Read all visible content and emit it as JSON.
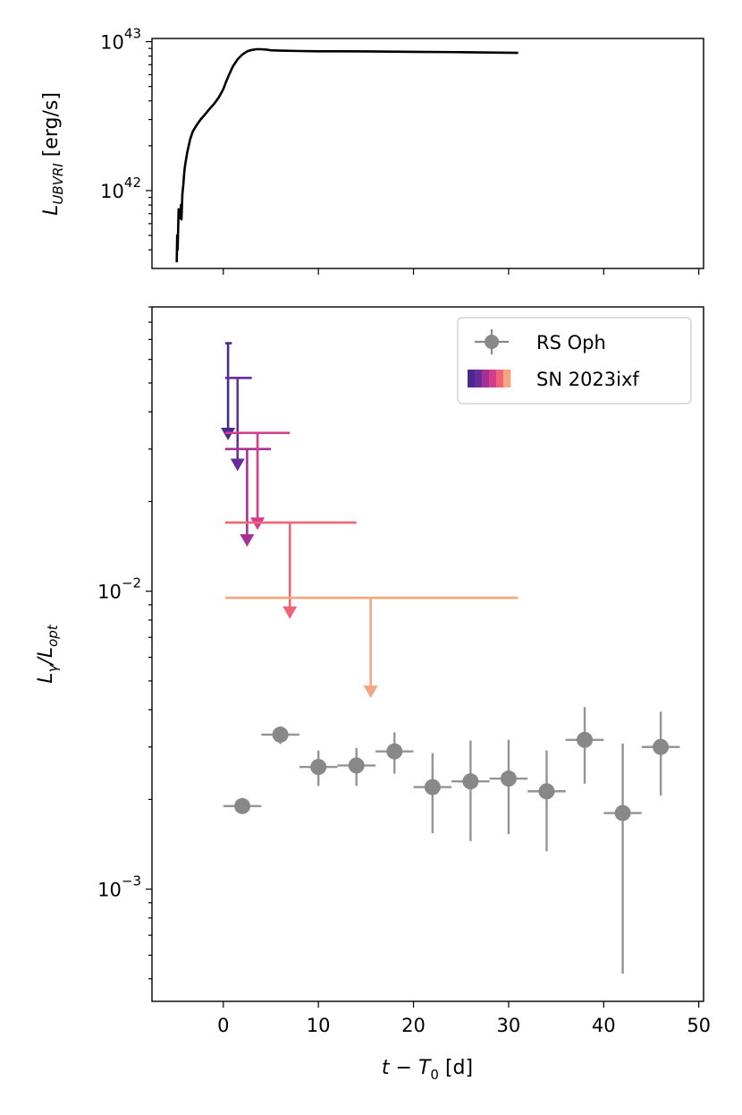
{
  "chart_data": [
    {
      "type": "line",
      "panel": "top",
      "ylabel": "L_UBVRI [erg/s]",
      "ylabel_main": "L",
      "ylabel_sub": "UBVRI",
      "ylabel_unit": " [erg/s]",
      "yscale": "log",
      "ylim": [
        3e+41,
        1.05e+43
      ],
      "xlim": [
        -7.5,
        50.5
      ],
      "yticks": [
        {
          "value": 1e+42,
          "base": "10",
          "exp": "42"
        },
        {
          "value": 1e+43,
          "base": "10",
          "exp": "43"
        }
      ],
      "series": [
        {
          "name": "SN 2023ixf optical light curve",
          "color": "#000000",
          "x": [
            -4.9,
            -4.85,
            -4.8,
            -4.7,
            -4.6,
            -4.5,
            -4.45,
            -4.4,
            -4.3,
            -4.2,
            -4.1,
            -4.0,
            -3.8,
            -3.5,
            -3.2,
            -2.8,
            -2.4,
            -2.0,
            -1.5,
            -1.0,
            -0.5,
            0.0,
            0.3,
            0.6,
            1.0,
            1.5,
            2.0,
            2.5,
            3.0,
            3.5,
            4.0,
            4.5,
            5.0,
            6.0,
            8.0,
            10.0,
            15.0,
            20.0,
            25.0,
            28.0,
            31.0
          ],
          "y": [
            3.3e+41,
            5e+41,
            4e+41,
            7.5e+41,
            7e+41,
            6.5e+41,
            8e+41,
            6.4e+41,
            9.5e+41,
            1.1e+42,
            1.35e+42,
            1.5e+42,
            1.8e+42,
            2.2e+42,
            2.5e+42,
            2.75e+42,
            3e+42,
            3.2e+42,
            3.5e+42,
            3.8e+42,
            4.2e+42,
            4.8e+42,
            5.4e+42,
            6e+42,
            6.8e+42,
            7.6e+42,
            8.2e+42,
            8.6e+42,
            8.8e+42,
            8.9e+42,
            8.9e+42,
            8.85e+42,
            8.75e+42,
            8.7e+42,
            8.65e+42,
            8.62e+42,
            8.6e+42,
            8.55e+42,
            8.5e+42,
            8.45e+42,
            8.4e+42
          ]
        }
      ]
    },
    {
      "type": "scatter",
      "panel": "bottom",
      "xlabel": "t − T0 [d]",
      "xlabel_main": "t − T",
      "xlabel_sub": "0",
      "xlabel_unit": " [d]",
      "ylabel": "Lγ/Lopt",
      "yscale": "log",
      "xlim": [
        -7.5,
        50.5
      ],
      "ylim": [
        0.00042,
        0.09
      ],
      "xticks": [
        0,
        10,
        20,
        30,
        40,
        50
      ],
      "yticks": [
        {
          "value": 0.001,
          "base": "10",
          "exp": "−3"
        },
        {
          "value": 0.01,
          "base": "10",
          "exp": "−2"
        }
      ],
      "legend": {
        "position": "top-right",
        "entries": [
          {
            "label": "RS Oph",
            "color": "#888888",
            "marker": "errorbar-circle"
          },
          {
            "label": "SN 2023ixf",
            "colors": [
              "#4b2991",
              "#6a2c9b",
              "#a63195",
              "#d33d8c",
              "#ef6577",
              "#f7a580"
            ],
            "marker": "color-swatches"
          }
        ]
      },
      "series": [
        {
          "name": "RS Oph",
          "color": "#888888",
          "points": [
            {
              "x": 2,
              "xerr": 2,
              "y": 0.0019,
              "ylo": 0.00184,
              "yhi": 0.00196
            },
            {
              "x": 6,
              "xerr": 2,
              "y": 0.0033,
              "ylo": 0.00307,
              "yhi": 0.00352
            },
            {
              "x": 10,
              "xerr": 2,
              "y": 0.00257,
              "ylo": 0.00222,
              "yhi": 0.00292
            },
            {
              "x": 14,
              "xerr": 2,
              "y": 0.0026,
              "ylo": 0.00222,
              "yhi": 0.00298
            },
            {
              "x": 18,
              "xerr": 2,
              "y": 0.0029,
              "ylo": 0.00244,
              "yhi": 0.00336
            },
            {
              "x": 22,
              "xerr": 2,
              "y": 0.0022,
              "ylo": 0.00154,
              "yhi": 0.00286
            },
            {
              "x": 26,
              "xerr": 2,
              "y": 0.0023,
              "ylo": 0.00145,
              "yhi": 0.00315
            },
            {
              "x": 30,
              "xerr": 2,
              "y": 0.00235,
              "ylo": 0.00153,
              "yhi": 0.00317
            },
            {
              "x": 34,
              "xerr": 2,
              "y": 0.00213,
              "ylo": 0.00134,
              "yhi": 0.00292
            },
            {
              "x": 38,
              "xerr": 2,
              "y": 0.00317,
              "ylo": 0.00226,
              "yhi": 0.00408
            },
            {
              "x": 42,
              "xerr": 2,
              "y": 0.0018,
              "ylo": 0.00052,
              "yhi": 0.00308
            },
            {
              "x": 46,
              "xerr": 2,
              "y": 0.003,
              "ylo": 0.00206,
              "yhi": 0.00394
            }
          ]
        },
        {
          "name": "SN 2023ixf",
          "upper_limits": [
            {
              "x": 0.5,
              "xmin": 0.2,
              "xmax": 0.9,
              "y": 0.068,
              "arrow_to": 0.033,
              "color": "#4b2991"
            },
            {
              "x": 1.5,
              "xmin": 0.2,
              "xmax": 3.0,
              "y": 0.052,
              "arrow_to": 0.026,
              "color": "#6a2c9b"
            },
            {
              "x": 2.5,
              "xmin": 0.2,
              "xmax": 5.0,
              "y": 0.03,
              "arrow_to": 0.0145,
              "color": "#a63195"
            },
            {
              "x": 3.6,
              "xmin": 0.2,
              "xmax": 7.0,
              "y": 0.034,
              "arrow_to": 0.0165,
              "color": "#d33d8c"
            },
            {
              "x": 7.0,
              "xmin": 0.2,
              "xmax": 14.0,
              "y": 0.017,
              "arrow_to": 0.0083,
              "color": "#ef6577"
            },
            {
              "x": 15.5,
              "xmin": 0.2,
              "xmax": 31.0,
              "y": 0.0095,
              "arrow_to": 0.0045,
              "color": "#f7a580"
            }
          ]
        }
      ]
    }
  ]
}
